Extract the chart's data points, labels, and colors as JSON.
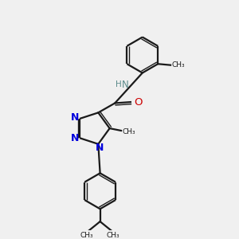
{
  "bg_color": "#f0f0f0",
  "bond_color": "#1a1a1a",
  "n_color": "#0000dd",
  "o_color": "#cc0000",
  "nh_color": "#5a8a8a",
  "figsize": [
    3.0,
    3.0
  ],
  "dpi": 100,
  "xlim": [
    0,
    10
  ],
  "ylim": [
    0,
    10
  ]
}
